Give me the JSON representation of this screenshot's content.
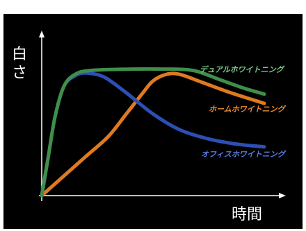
{
  "chart_data": {
    "type": "line",
    "title": "",
    "xlabel": "時間",
    "ylabel": "白さ",
    "ylabel_display": "白\nさ",
    "xlim": [
      0,
      100
    ],
    "ylim": [
      0,
      100
    ],
    "grid": false,
    "legend": "inline labels at line ends",
    "background": "#000000",
    "axis_color": "#ffffff",
    "series": [
      {
        "name": "デュアルホワイトニング",
        "color": "#3f8f4a",
        "label_color": "#7dc98a",
        "points": [
          [
            0,
            0
          ],
          [
            3,
            30
          ],
          [
            6,
            60
          ],
          [
            10,
            83
          ],
          [
            15,
            92
          ],
          [
            22,
            95
          ],
          [
            40,
            96
          ],
          [
            55,
            96
          ],
          [
            68,
            95
          ],
          [
            80,
            88
          ],
          [
            90,
            82
          ],
          [
            100,
            77
          ]
        ]
      },
      {
        "name": "ホームホワイトニング",
        "color": "#e07a1f",
        "label_color": "#f08a2a",
        "points": [
          [
            0,
            0
          ],
          [
            10,
            15
          ],
          [
            20,
            30
          ],
          [
            30,
            45
          ],
          [
            38,
            62
          ],
          [
            45,
            77
          ],
          [
            50,
            87
          ],
          [
            56,
            92
          ],
          [
            62,
            92
          ],
          [
            72,
            86
          ],
          [
            85,
            78
          ],
          [
            100,
            70
          ]
        ]
      },
      {
        "name": "オフィスホワイトニング",
        "color": "#2d4fb5",
        "label_color": "#5d7be0",
        "points": [
          [
            0,
            0
          ],
          [
            3,
            30
          ],
          [
            6,
            60
          ],
          [
            10,
            83
          ],
          [
            15,
            91
          ],
          [
            20,
            93
          ],
          [
            28,
            90
          ],
          [
            38,
            78
          ],
          [
            50,
            62
          ],
          [
            62,
            50
          ],
          [
            75,
            43
          ],
          [
            88,
            39
          ],
          [
            100,
            37
          ]
        ]
      }
    ]
  }
}
